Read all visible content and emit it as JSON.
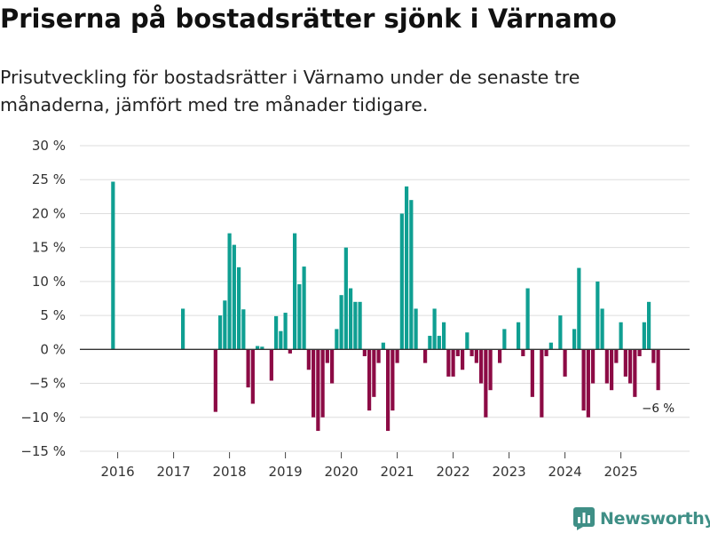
{
  "title": "Priserna på bostadsrätter sjönk i Värnamo",
  "subtitle": "Prisutveckling för bostadsrätter i Värnamo under de senaste tre månaderna, jämfört med tre månader tidigare.",
  "brand": {
    "name": "Newsworthy",
    "color": "#3f8f86"
  },
  "colors": {
    "positive": "#0f9f92",
    "negative": "#8c0b45",
    "grid": "#dddddd",
    "zero_line": "#333333"
  },
  "chart_data": {
    "type": "bar",
    "title": "Priserna på bostadsrätter sjönk i Värnamo",
    "xlabel": "",
    "ylabel": "",
    "ylim": [
      -15,
      30
    ],
    "yticks": [
      30,
      25,
      20,
      15,
      10,
      5,
      0,
      -5,
      -10,
      -15
    ],
    "ytick_labels": [
      "30 %",
      "25 %",
      "20 %",
      "15 %",
      "10 %",
      "5 %",
      "0 %",
      "−5 %",
      "−10 %",
      "−15 %"
    ],
    "xticks": [
      "2016",
      "2017",
      "2018",
      "2019",
      "2020",
      "2021",
      "2022",
      "2023",
      "2024",
      "2025"
    ],
    "x_start": "2015-11",
    "unit": "%",
    "series": [
      {
        "name": "Prisutveckling",
        "values": [
          null,
          24.7,
          null,
          null,
          null,
          null,
          null,
          null,
          null,
          null,
          null,
          null,
          null,
          null,
          null,
          null,
          6.0,
          null,
          null,
          null,
          null,
          null,
          null,
          -9.2,
          5.0,
          7.2,
          17.1,
          15.4,
          12.1,
          5.9,
          -5.6,
          -8.0,
          0.5,
          0.4,
          null,
          -4.6,
          4.9,
          2.7,
          5.4,
          -0.6,
          17.1,
          9.6,
          12.2,
          -3.0,
          -10.0,
          -12.0,
          -10.0,
          -2.0,
          -5.0,
          3.0,
          8.0,
          15.0,
          9.0,
          7.0,
          7.0,
          -1.0,
          -9.0,
          -7.0,
          -2.0,
          1.0,
          -12.0,
          -9.0,
          -2.0,
          20.0,
          24.0,
          22.0,
          6.0,
          null,
          -2.0,
          2.0,
          6.0,
          2.0,
          4.0,
          -4.0,
          -4.0,
          -1.0,
          -3.0,
          2.5,
          -1.0,
          -2.0,
          -5.0,
          -10.0,
          -6.0,
          null,
          -2.0,
          3.0,
          null,
          null,
          4.0,
          -1.0,
          9.0,
          -7.0,
          null,
          -10.0,
          -1.0,
          1.0,
          null,
          5.0,
          -4.0,
          null,
          3.0,
          12.0,
          -9.0,
          -10.0,
          -5.0,
          10.0,
          6.0,
          -5.0,
          -6.0,
          -2.0,
          4.0,
          -4.0,
          -5.0,
          -7.0,
          -1.0,
          4.0,
          7.0,
          -2.0,
          -6.0
        ]
      }
    ],
    "annotations": [
      {
        "label": "−6 %",
        "target": "last"
      }
    ]
  }
}
